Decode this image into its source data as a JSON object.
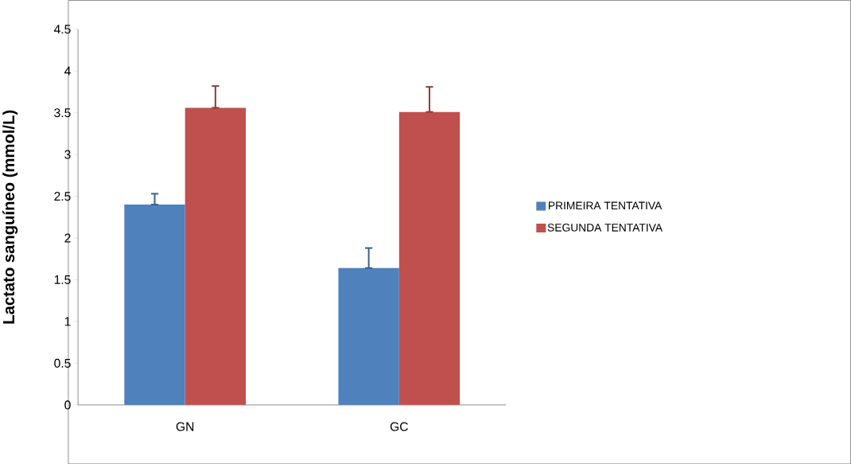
{
  "chart_data": {
    "type": "bar",
    "ylabel": "Lactato sanguíneo (mmol/L)",
    "categories": [
      "GN",
      "GC"
    ],
    "series": [
      {
        "name": "PRIMEIRA TENTATIVA",
        "color": "#4f81bd",
        "values": [
          2.4,
          1.64
        ],
        "errors": [
          [
            2.4,
            2.53
          ],
          [
            1.64,
            1.88
          ]
        ]
      },
      {
        "name": "SEGUNDA TENTATIVA",
        "color": "#c0504d",
        "values": [
          3.56,
          3.51
        ],
        "errors": [
          [
            3.56,
            3.82
          ],
          [
            3.51,
            3.81
          ]
        ]
      }
    ],
    "ylim": [
      0,
      4.5
    ],
    "yticks": [
      0,
      0.5,
      1,
      1.5,
      2,
      2.5,
      3,
      3.5,
      4,
      4.5
    ],
    "grid": false,
    "legend": "right"
  }
}
